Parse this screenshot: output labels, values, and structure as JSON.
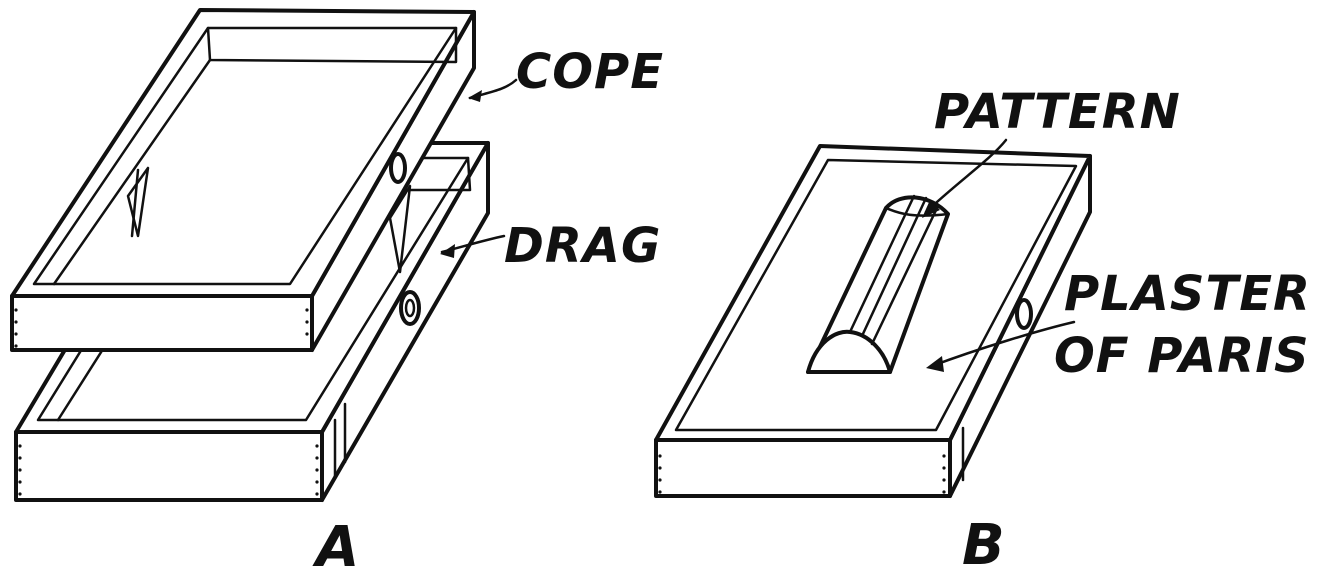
{
  "figure_a": {
    "caption": "A",
    "labels": {
      "cope": "COPE",
      "drag": "DRAG"
    }
  },
  "figure_b": {
    "caption": "B",
    "labels": {
      "pattern": "PATTERN",
      "plaster_line1": "PLASTER",
      "plaster_line2": "OF PARIS"
    }
  }
}
